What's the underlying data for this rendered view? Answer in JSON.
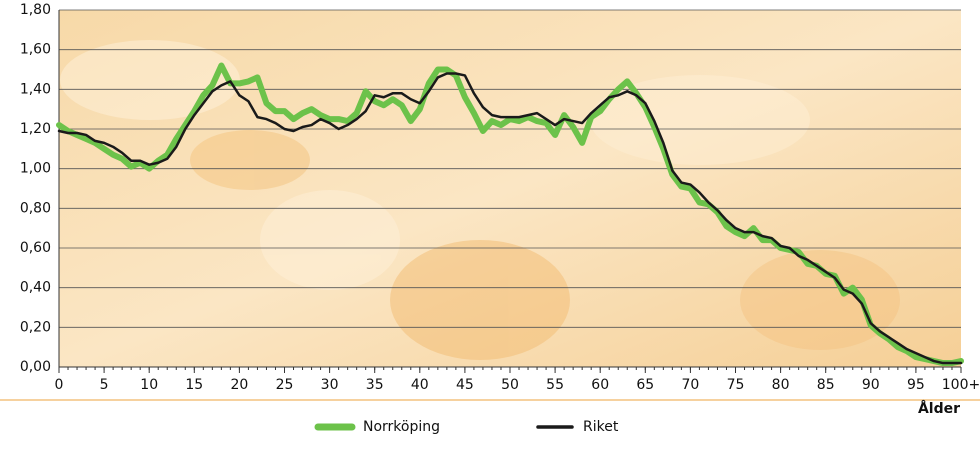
{
  "chart_data": {
    "type": "line",
    "x_label": "Ålder",
    "x": [
      0,
      1,
      2,
      3,
      4,
      5,
      6,
      7,
      8,
      9,
      10,
      11,
      12,
      13,
      14,
      15,
      16,
      17,
      18,
      19,
      20,
      21,
      22,
      23,
      24,
      25,
      26,
      27,
      28,
      29,
      30,
      31,
      32,
      33,
      34,
      35,
      36,
      37,
      38,
      39,
      40,
      41,
      42,
      43,
      44,
      45,
      46,
      47,
      48,
      49,
      50,
      51,
      52,
      53,
      54,
      55,
      56,
      57,
      58,
      59,
      60,
      61,
      62,
      63,
      64,
      65,
      66,
      67,
      68,
      69,
      70,
      71,
      72,
      73,
      74,
      75,
      76,
      77,
      78,
      79,
      80,
      81,
      82,
      83,
      84,
      85,
      86,
      87,
      88,
      89,
      90,
      91,
      92,
      93,
      94,
      95,
      96,
      97,
      98,
      99,
      100
    ],
    "series": [
      {
        "name": "Norrköping",
        "color": "#6cc24a",
        "width": 6,
        "values": [
          1.22,
          1.19,
          1.17,
          1.15,
          1.13,
          1.1,
          1.07,
          1.05,
          1.01,
          1.03,
          1.0,
          1.04,
          1.07,
          1.15,
          1.22,
          1.29,
          1.37,
          1.42,
          1.52,
          1.43,
          1.43,
          1.44,
          1.46,
          1.33,
          1.29,
          1.29,
          1.25,
          1.28,
          1.3,
          1.27,
          1.25,
          1.25,
          1.24,
          1.28,
          1.39,
          1.34,
          1.32,
          1.35,
          1.32,
          1.24,
          1.3,
          1.43,
          1.5,
          1.5,
          1.47,
          1.36,
          1.28,
          1.19,
          1.24,
          1.22,
          1.25,
          1.24,
          1.26,
          1.24,
          1.23,
          1.17,
          1.27,
          1.21,
          1.13,
          1.26,
          1.29,
          1.35,
          1.4,
          1.44,
          1.38,
          1.31,
          1.21,
          1.1,
          0.97,
          0.91,
          0.9,
          0.83,
          0.82,
          0.78,
          0.71,
          0.68,
          0.66,
          0.7,
          0.64,
          0.64,
          0.6,
          0.59,
          0.58,
          0.52,
          0.51,
          0.47,
          0.46,
          0.37,
          0.4,
          0.34,
          0.21,
          0.17,
          0.14,
          0.1,
          0.08,
          0.05,
          0.04,
          0.03,
          0.02,
          0.02,
          0.03
        ]
      },
      {
        "name": "Riket",
        "color": "#1a1a1a",
        "width": 2.5,
        "values": [
          1.19,
          1.18,
          1.18,
          1.17,
          1.14,
          1.13,
          1.11,
          1.08,
          1.04,
          1.04,
          1.02,
          1.03,
          1.05,
          1.11,
          1.2,
          1.27,
          1.33,
          1.39,
          1.42,
          1.44,
          1.37,
          1.34,
          1.26,
          1.25,
          1.23,
          1.2,
          1.19,
          1.21,
          1.22,
          1.25,
          1.23,
          1.2,
          1.22,
          1.25,
          1.29,
          1.37,
          1.36,
          1.38,
          1.38,
          1.35,
          1.33,
          1.39,
          1.46,
          1.48,
          1.48,
          1.47,
          1.38,
          1.31,
          1.27,
          1.26,
          1.26,
          1.26,
          1.27,
          1.28,
          1.25,
          1.22,
          1.25,
          1.24,
          1.23,
          1.28,
          1.32,
          1.36,
          1.37,
          1.39,
          1.37,
          1.33,
          1.24,
          1.13,
          0.99,
          0.93,
          0.92,
          0.88,
          0.83,
          0.79,
          0.74,
          0.7,
          0.68,
          0.68,
          0.66,
          0.65,
          0.61,
          0.6,
          0.56,
          0.54,
          0.51,
          0.48,
          0.45,
          0.39,
          0.37,
          0.32,
          0.22,
          0.18,
          0.15,
          0.12,
          0.09,
          0.07,
          0.05,
          0.03,
          0.02,
          0.02,
          0.02
        ]
      }
    ],
    "xlim": [
      0,
      100
    ],
    "xticks": [
      0,
      5,
      10,
      15,
      20,
      25,
      30,
      35,
      40,
      45,
      50,
      55,
      60,
      65,
      70,
      75,
      80,
      85,
      90,
      95,
      {
        "value": 100,
        "label": "100+"
      }
    ],
    "ylim": [
      0,
      1.8
    ],
    "yticks": [
      {
        "value": 0,
        "label": "0,00"
      },
      {
        "value": 0.2,
        "label": "0,20"
      },
      {
        "value": 0.4,
        "label": "0,40"
      },
      {
        "value": 0.6,
        "label": "0,60"
      },
      {
        "value": 0.8,
        "label": "0,80"
      },
      {
        "value": 1.0,
        "label": "1,00"
      },
      {
        "value": 1.2,
        "label": "1,20"
      },
      {
        "value": 1.4,
        "label": "1,40"
      },
      {
        "value": 1.6,
        "label": "1,60"
      },
      {
        "value": 1.8,
        "label": "1,80"
      }
    ],
    "grid": true
  }
}
